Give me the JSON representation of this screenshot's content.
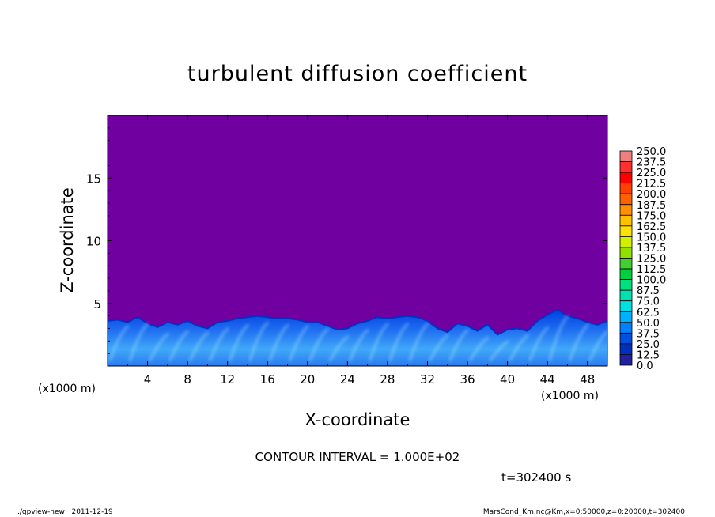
{
  "chart_data": {
    "type": "heatmap",
    "title": "turbulent diffusion coefficient",
    "xlabel": "X-coordinate",
    "ylabel": "Z-coordinate",
    "x_unit": "(x1000 m)",
    "y_unit": "(x1000 m)",
    "xlim": [
      0,
      50
    ],
    "ylim": [
      0,
      20
    ],
    "x_ticks": [
      4,
      8,
      12,
      16,
      20,
      24,
      28,
      32,
      36,
      40,
      44,
      48
    ],
    "y_ticks": [
      5,
      10,
      15
    ],
    "colorbar": {
      "levels": [
        "250.0",
        "237.5",
        "225.0",
        "212.5",
        "200.0",
        "187.5",
        "175.0",
        "162.5",
        "150.0",
        "137.5",
        "125.0",
        "112.5",
        "100.0",
        "87.5",
        "75.0",
        "62.5",
        "50.0",
        "37.5",
        "25.0",
        "12.5",
        "0.0"
      ],
      "colors": [
        "#f08080",
        "#ff3030",
        "#ff0000",
        "#ff4000",
        "#ff6000",
        "#ff9000",
        "#ffc000",
        "#ffe000",
        "#d0f000",
        "#90e000",
        "#40d030",
        "#00d040",
        "#00e080",
        "#00e0b0",
        "#00e0e0",
        "#00b0ff",
        "#0080ff",
        "#0050e0",
        "#0030c0",
        "#2020a0",
        "#7000a0"
      ]
    },
    "background_color": "#7000a0",
    "contour_interval": "CONTOUR INTERVAL = 1.000E+02",
    "time_label": "t=302400 s",
    "footer_left": "./gpview-new   2011-12-19",
    "footer_right": "MarsCond_Km.nc@Km,x=0:50000,z=0:20000,t=302400",
    "boundary_layer": {
      "x": [
        0,
        1,
        2,
        3,
        4,
        5,
        6,
        7,
        8,
        9,
        10,
        11,
        12,
        13,
        14,
        15,
        16,
        17,
        18,
        19,
        20,
        21,
        22,
        23,
        24,
        25,
        26,
        27,
        28,
        29,
        30,
        31,
        32,
        33,
        34,
        35,
        36,
        37,
        38,
        39,
        40,
        41,
        42,
        43,
        44,
        45,
        46,
        47,
        48,
        49,
        50
      ],
      "top_z": [
        3.6,
        3.7,
        3.5,
        3.9,
        3.4,
        3.1,
        3.5,
        3.3,
        3.6,
        3.2,
        3.0,
        3.5,
        3.6,
        3.8,
        3.9,
        4.0,
        3.9,
        3.8,
        3.8,
        3.7,
        3.5,
        3.5,
        3.2,
        2.9,
        3.0,
        3.4,
        3.6,
        3.9,
        3.8,
        3.9,
        4.0,
        3.9,
        3.6,
        3.0,
        2.7,
        3.4,
        3.2,
        2.8,
        3.3,
        2.5,
        2.9,
        3.0,
        2.8,
        3.6,
        4.1,
        4.5,
        4.0,
        3.8,
        3.5,
        3.3,
        3.6
      ]
    }
  }
}
